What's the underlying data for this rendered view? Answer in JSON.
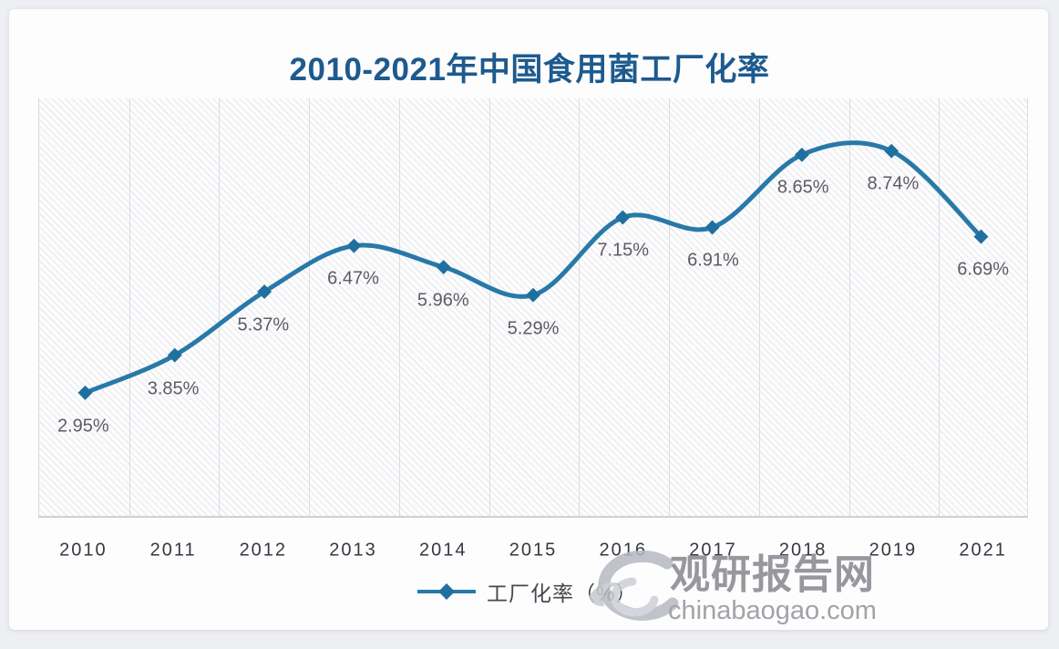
{
  "page": {
    "background": "#edeff3",
    "card_background": "#fdfdfe"
  },
  "chart_data": {
    "type": "line",
    "title": "2010-2021年中国食用菌工厂化率",
    "categories": [
      "2010",
      "2011",
      "2012",
      "2013",
      "2014",
      "2015",
      "2016",
      "2017",
      "2018",
      "2019",
      "2021"
    ],
    "series": [
      {
        "name": "工厂化率（%）",
        "values": [
          2.95,
          3.85,
          5.37,
          6.47,
          5.96,
          5.29,
          7.15,
          6.91,
          8.65,
          8.74,
          6.69
        ]
      }
    ],
    "point_labels": [
      "2.95%",
      "3.85%",
      "5.37%",
      "6.47%",
      "5.96%",
      "5.29%",
      "7.15%",
      "6.91%",
      "8.65%",
      "8.74%",
      "6.69%"
    ],
    "xlabel": "",
    "ylabel": "",
    "ylim": [
      0,
      10
    ],
    "y_axis_ticks_visible": false,
    "grid": "vertical",
    "line_smooth": true,
    "marker": "diamond",
    "legend_position": "bottom",
    "colors": {
      "line": "#2879a8",
      "marker": "#1f6f9f",
      "title": "#1d5a8e",
      "point_label": "#5c5c63",
      "axis_label": "#37373f",
      "legend_text": "#47474f",
      "gridline": "#dcdce1"
    }
  },
  "legend": {
    "label": "工厂化率（%）"
  },
  "watermark": {
    "site_name": "观研报告网",
    "site_url": "chinabaogao.com",
    "logo_icon": "swirl-eye-logo",
    "color": "#97979d"
  }
}
